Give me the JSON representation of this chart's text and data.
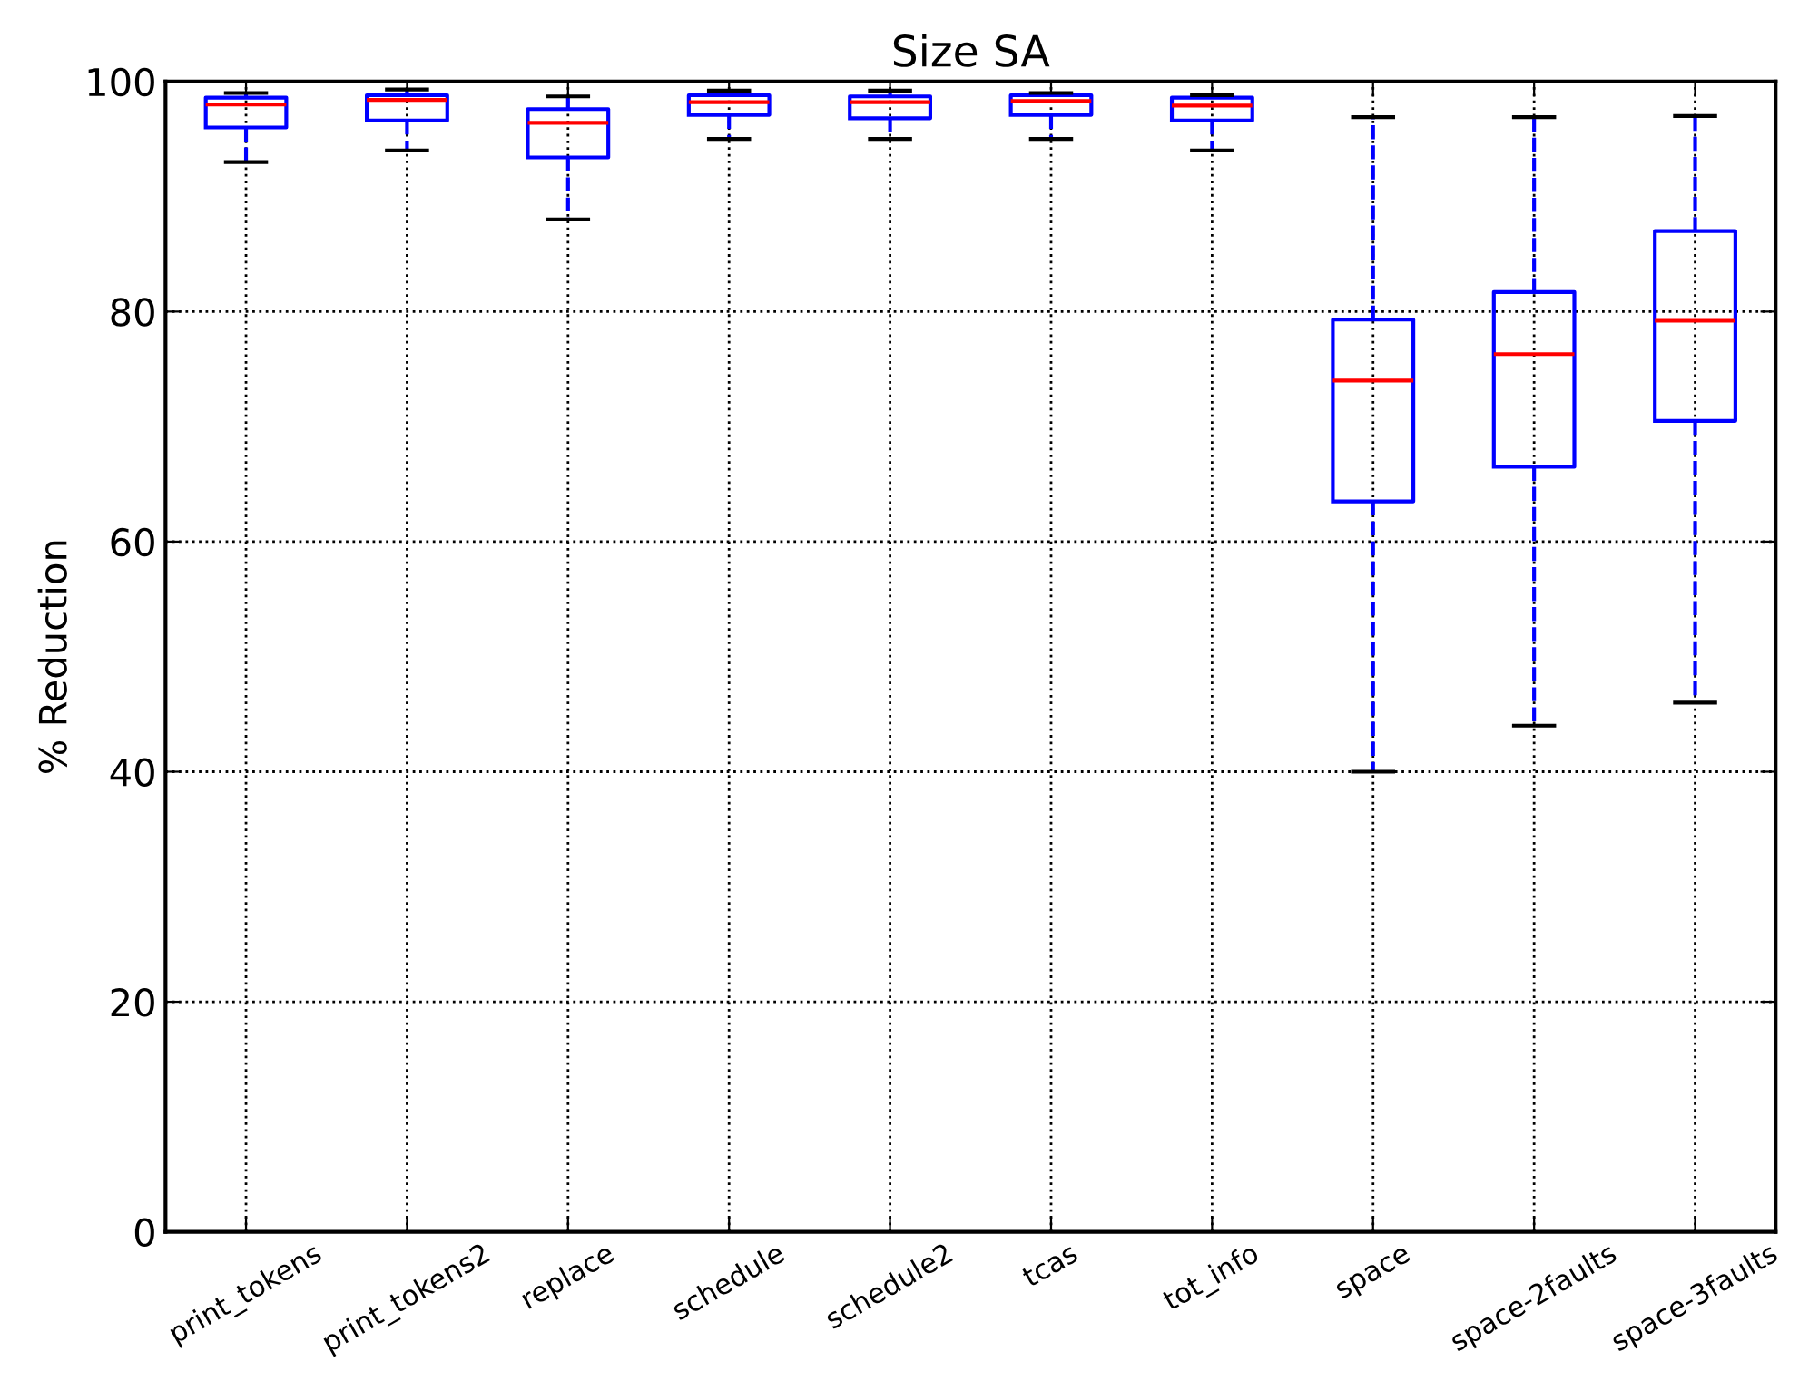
{
  "chart_data": {
    "type": "box",
    "title": "Size SA",
    "ylabel": "% Reduction",
    "categories": [
      "print_tokens",
      "print_tokens2",
      "replace",
      "schedule",
      "schedule2",
      "tcas",
      "tot_info",
      "space",
      "space-2faults",
      "space-3faults"
    ],
    "boxes": [
      {
        "low": 93.0,
        "q1": 96.0,
        "median": 98.0,
        "q3": 98.6,
        "high": 99.0
      },
      {
        "low": 94.0,
        "q1": 96.6,
        "median": 98.4,
        "q3": 98.8,
        "high": 99.3
      },
      {
        "low": 88.0,
        "q1": 93.4,
        "median": 96.4,
        "q3": 97.6,
        "high": 98.7
      },
      {
        "low": 95.0,
        "q1": 97.1,
        "median": 98.2,
        "q3": 98.8,
        "high": 99.2
      },
      {
        "low": 95.0,
        "q1": 96.8,
        "median": 98.2,
        "q3": 98.7,
        "high": 99.2
      },
      {
        "low": 95.0,
        "q1": 97.1,
        "median": 98.3,
        "q3": 98.8,
        "high": 99.0
      },
      {
        "low": 94.0,
        "q1": 96.6,
        "median": 97.9,
        "q3": 98.6,
        "high": 98.8
      },
      {
        "low": 40.0,
        "q1": 63.5,
        "median": 74.0,
        "q3": 79.3,
        "high": 96.9
      },
      {
        "low": 44.0,
        "q1": 66.5,
        "median": 76.3,
        "q3": 81.7,
        "high": 96.9
      },
      {
        "low": 46.0,
        "q1": 70.5,
        "median": 79.2,
        "q3": 87.0,
        "high": 97.0
      }
    ],
    "color": "#0000ff",
    "ylim": [
      0,
      100
    ],
    "yticks": [
      0,
      20,
      40,
      60,
      80,
      100
    ],
    "grid": true,
    "line_style": "dashed"
  }
}
